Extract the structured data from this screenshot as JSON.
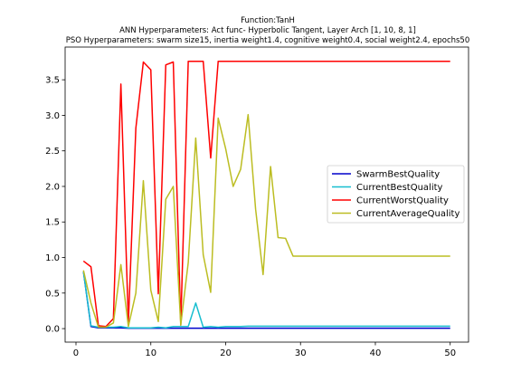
{
  "chart_data": {
    "type": "line",
    "title": "Function:TanH",
    "subtitle_lines": [
      "ANN Hyperparameters: Act func- Hyperbolic Tangent, Layer Arch [1, 10, 8, 1]",
      "PSO Hyperparameters: swarm size15, inertia weight1.4, cognitive weight0.4, social weight2.4, epochs50"
    ],
    "xlabel": "",
    "ylabel": "",
    "xlim": [
      -1.45,
      52.45
    ],
    "ylim": [
      -0.19,
      3.96
    ],
    "xticks": [
      0,
      10,
      20,
      30,
      40,
      50
    ],
    "yticks": [
      0.0,
      0.5,
      1.0,
      1.5,
      2.0,
      2.5,
      3.0,
      3.5
    ],
    "grid": false,
    "legend_position": "center-right",
    "x": [
      1,
      2,
      3,
      4,
      5,
      6,
      7,
      8,
      9,
      10,
      11,
      12,
      13,
      14,
      15,
      16,
      17,
      18,
      19,
      20,
      21,
      22,
      23,
      24,
      25,
      26,
      27,
      28,
      29,
      30,
      31,
      32,
      33,
      34,
      35,
      36,
      37,
      38,
      39,
      40,
      41,
      42,
      43,
      44,
      45,
      46,
      47,
      48,
      49,
      50
    ],
    "series": [
      {
        "name": "SwarmBestQuality",
        "color": "#0000cc",
        "values": [
          0.8,
          0.03,
          0.01,
          0.01,
          0.01,
          0.01,
          0.005,
          0.005,
          0.005,
          0.005,
          0.005,
          0.005,
          0.005,
          0.005,
          0.005,
          0.005,
          0.005,
          0.005,
          0.005,
          0.005,
          0.005,
          0.005,
          0.005,
          0.005,
          0.005,
          0.005,
          0.005,
          0.005,
          0.005,
          0.005,
          0.005,
          0.005,
          0.005,
          0.005,
          0.005,
          0.005,
          0.005,
          0.005,
          0.005,
          0.005,
          0.005,
          0.005,
          0.005,
          0.005,
          0.005,
          0.005,
          0.005,
          0.005,
          0.005,
          0.005
        ]
      },
      {
        "name": "CurrentBestQuality",
        "color": "#17becf",
        "values": [
          0.8,
          0.04,
          0.02,
          0.02,
          0.02,
          0.03,
          0.01,
          0.01,
          0.01,
          0.01,
          0.02,
          0.01,
          0.03,
          0.03,
          0.03,
          0.36,
          0.02,
          0.03,
          0.02,
          0.03,
          0.03,
          0.03,
          0.035,
          0.035,
          0.035,
          0.035,
          0.035,
          0.035,
          0.035,
          0.035,
          0.035,
          0.035,
          0.035,
          0.035,
          0.035,
          0.035,
          0.035,
          0.035,
          0.035,
          0.035,
          0.035,
          0.035,
          0.035,
          0.035,
          0.035,
          0.035,
          0.035,
          0.035,
          0.035,
          0.035
        ]
      },
      {
        "name": "CurrentWorstQuality",
        "color": "#ff0000",
        "values": [
          0.95,
          0.87,
          0.04,
          0.03,
          0.14,
          3.44,
          0.08,
          2.82,
          3.75,
          3.64,
          0.49,
          3.71,
          3.75,
          0.05,
          3.76,
          3.76,
          3.76,
          2.4,
          3.76,
          3.76,
          3.76,
          3.76,
          3.76,
          3.76,
          3.76,
          3.76,
          3.76,
          3.76,
          3.76,
          3.76,
          3.76,
          3.76,
          3.76,
          3.76,
          3.76,
          3.76,
          3.76,
          3.76,
          3.76,
          3.76,
          3.76,
          3.76,
          3.76,
          3.76,
          3.76,
          3.76,
          3.76,
          3.76,
          3.76,
          3.76
        ]
      },
      {
        "name": "CurrentAverageQuality",
        "color": "#bcbd22",
        "values": [
          0.82,
          0.36,
          0.02,
          0.02,
          0.08,
          0.9,
          0.03,
          0.5,
          2.08,
          0.54,
          0.1,
          1.82,
          2.0,
          0.05,
          0.93,
          2.68,
          1.04,
          0.51,
          2.96,
          2.53,
          2.0,
          2.24,
          3.01,
          1.68,
          0.76,
          2.28,
          1.28,
          1.27,
          1.02,
          1.02,
          1.02,
          1.02,
          1.02,
          1.02,
          1.02,
          1.02,
          1.02,
          1.02,
          1.02,
          1.02,
          1.02,
          1.02,
          1.02,
          1.02,
          1.02,
          1.02,
          1.02,
          1.02,
          1.02,
          1.02
        ]
      }
    ]
  }
}
